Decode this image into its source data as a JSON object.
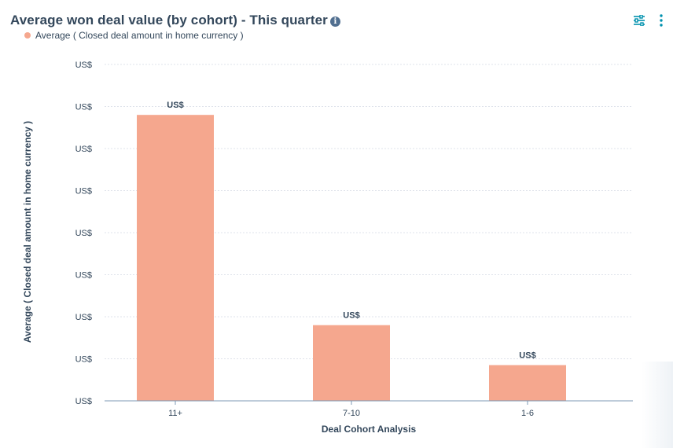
{
  "header": {
    "title": "Average won deal value (by cohort) - This quarter",
    "info_icon": "info-icon"
  },
  "toolbar": {
    "filter_icon": "filter-sliders-icon",
    "more_icon": "more-vertical-icon"
  },
  "colors": {
    "bar": "#f5a78e",
    "axis_text": "#33475b",
    "grid": "#dfe3eb",
    "icon_accent": "#0091ae"
  },
  "legend": [
    {
      "label": "Average ( Closed deal amount in home currency )",
      "color": "#f5a78e"
    }
  ],
  "chart_data": {
    "type": "bar",
    "title": "Average won deal value (by cohort) - This quarter",
    "xlabel": "Deal Cohort Analysis",
    "ylabel": "Average ( Closed deal amount in home currency )",
    "categories": [
      "11+",
      "7-10",
      "1-6"
    ],
    "series": [
      {
        "name": "Average ( Closed deal amount in home currency )",
        "values": [
          6.8,
          1.8,
          0.85
        ],
        "data_labels": [
          "US$",
          "US$",
          "US$"
        ]
      }
    ],
    "y_tick_labels": [
      "US$",
      "US$",
      "US$",
      "US$",
      "US$",
      "US$",
      "US$",
      "US$",
      "US$"
    ],
    "ylim": [
      0,
      8
    ],
    "grid": true,
    "legend_position": "top-left"
  }
}
